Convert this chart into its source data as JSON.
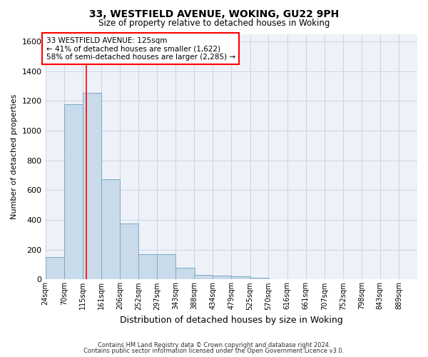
{
  "title1": "33, WESTFIELD AVENUE, WOKING, GU22 9PH",
  "title2": "Size of property relative to detached houses in Woking",
  "xlabel": "Distribution of detached houses by size in Woking",
  "ylabel": "Number of detached properties",
  "footer1": "Contains HM Land Registry data © Crown copyright and database right 2024.",
  "footer2": "Contains public sector information licensed under the Open Government Licence v3.0.",
  "bar_color": "#c9daea",
  "bar_edge_color": "#7aaac8",
  "grid_color": "#c8d4e4",
  "annotation_line1": "33 WESTFIELD AVENUE: 125sqm",
  "annotation_line2": "← 41% of detached houses are smaller (1,622)",
  "annotation_line3": "58% of semi-detached houses are larger (2,285) →",
  "red_line_x": 125,
  "bins": [
    24,
    70,
    115,
    161,
    206,
    252,
    297,
    343,
    388,
    434,
    479,
    525,
    570,
    616,
    661,
    707,
    752,
    798,
    843,
    889,
    934
  ],
  "bar_heights": [
    150,
    1175,
    1255,
    675,
    375,
    170,
    170,
    80,
    30,
    25,
    20,
    10,
    0,
    0,
    0,
    0,
    0,
    0,
    0,
    0
  ],
  "ylim": [
    0,
    1650
  ],
  "yticks": [
    0,
    200,
    400,
    600,
    800,
    1000,
    1200,
    1400,
    1600
  ],
  "bg_color": "#ffffff",
  "plot_bg_color": "#eef2f8"
}
